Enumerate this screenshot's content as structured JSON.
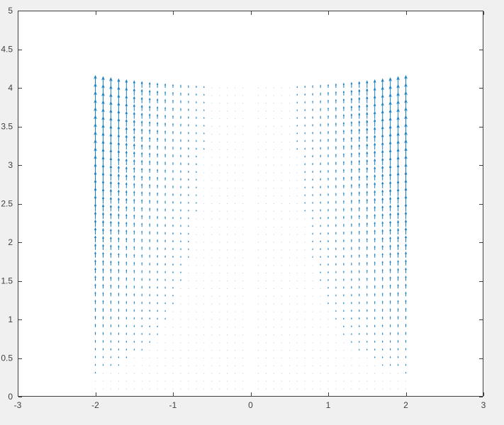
{
  "figure": {
    "background_color": "#f0f0f0",
    "plot_background_color": "#ffffff",
    "axis_color": "#3f3f3f",
    "tick_label_color": "#404040",
    "arrow_color": "#0072bd"
  },
  "chart_data": {
    "type": "quiver",
    "title": "",
    "xlabel": "",
    "ylabel": "",
    "xlim": [
      -3,
      3
    ],
    "ylim": [
      0,
      5
    ],
    "grid": false,
    "box": true,
    "tick_direction": "in",
    "xtick_values": [
      -3,
      -2,
      -1,
      0,
      1,
      2,
      3
    ],
    "xtick_labels": [
      "-3",
      "-2",
      "-1",
      "0",
      "1",
      "2",
      "3"
    ],
    "ytick_values": [
      0,
      0.5,
      1,
      1.5,
      2,
      2.5,
      3,
      3.5,
      4,
      4.5,
      5
    ],
    "ytick_labels": [
      "0",
      "0.5",
      "1",
      "1.5",
      "2",
      "2.5",
      "3",
      "3.5",
      "4",
      "4.5",
      "5"
    ],
    "field": {
      "description": "Dense vector-field (quiver) of vertical arrows pointing in +y; magnitude = x^2 * y, zero along x = 0, longest at x = +/-2, y = 4",
      "u_js": "0",
      "v_js": "x*x*y",
      "x_values": [
        -2.0,
        -1.9,
        -1.8,
        -1.7,
        -1.6,
        -1.5,
        -1.4,
        -1.3,
        -1.2,
        -1.1,
        -1.0,
        -0.9,
        -0.8,
        -0.7,
        -0.6,
        -0.5,
        -0.4,
        -0.3,
        -0.2,
        -0.1,
        0.0,
        0.1,
        0.2,
        0.3,
        0.4,
        0.5,
        0.6,
        0.7,
        0.8,
        0.9,
        1.0,
        1.1,
        1.2,
        1.3,
        1.4,
        1.5,
        1.6,
        1.7,
        1.8,
        1.9,
        2.0
      ],
      "y_values": [
        0.1,
        0.2,
        0.3,
        0.4,
        0.5,
        0.6,
        0.7,
        0.8,
        0.9,
        1.0,
        1.1,
        1.2,
        1.3,
        1.4,
        1.5,
        1.6,
        1.7,
        1.8,
        1.9,
        2.0,
        2.1,
        2.2,
        2.3,
        2.4,
        2.5,
        2.6,
        2.7,
        2.8,
        2.9,
        3.0,
        3.1,
        3.2,
        3.3,
        3.4,
        3.5,
        3.6,
        3.7,
        3.8,
        3.9,
        4.0
      ],
      "max_magnitude": 16,
      "arrow_scale_data_units_per_magnitude": 0.0097
    }
  }
}
